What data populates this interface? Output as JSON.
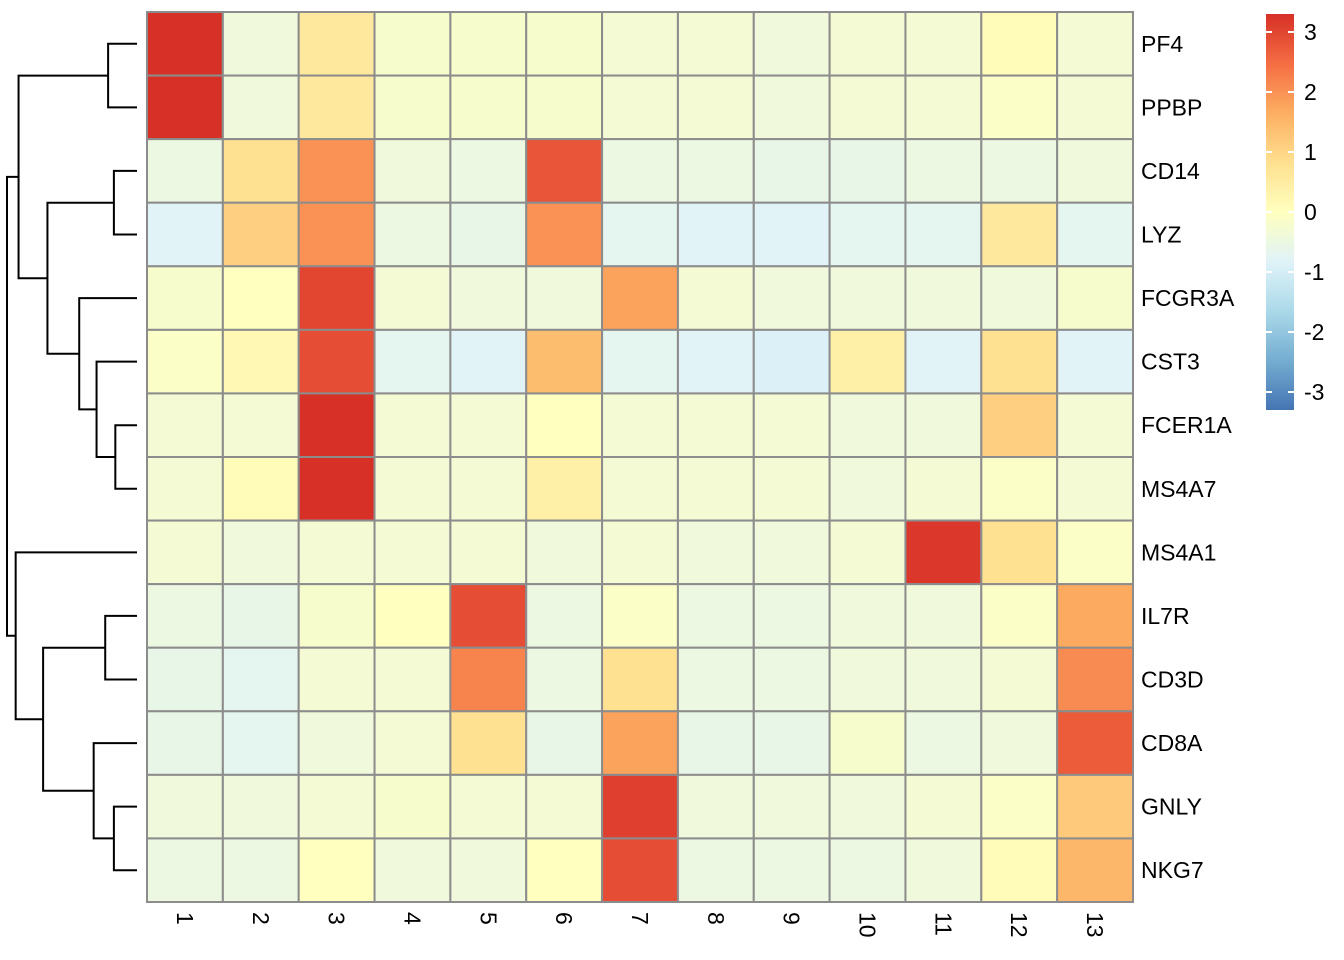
{
  "chart_data": {
    "type": "heatmap",
    "title": "",
    "xlabel": "",
    "ylabel": "",
    "columns": [
      "1",
      "2",
      "3",
      "4",
      "5",
      "6",
      "7",
      "8",
      "9",
      "10",
      "11",
      "12",
      "13"
    ],
    "rows": [
      "PF4",
      "PPBP",
      "CD14",
      "LYZ",
      "FCGR3A",
      "CST3",
      "FCER1A",
      "MS4A7",
      "MS4A1",
      "IL7R",
      "CD3D",
      "CD8A",
      "GNLY",
      "NKG7"
    ],
    "values": [
      [
        3.3,
        -0.4,
        0.6,
        -0.2,
        -0.2,
        -0.2,
        -0.3,
        -0.3,
        -0.4,
        -0.3,
        -0.3,
        0.1,
        -0.3
      ],
      [
        3.3,
        -0.4,
        0.6,
        -0.2,
        -0.2,
        -0.2,
        -0.3,
        -0.3,
        -0.4,
        -0.3,
        -0.3,
        -0.1,
        -0.3
      ],
      [
        -0.5,
        0.8,
        2.0,
        -0.4,
        -0.5,
        2.8,
        -0.5,
        -0.5,
        -0.6,
        -0.6,
        -0.5,
        -0.5,
        -0.4
      ],
      [
        -0.8,
        1.1,
        2.0,
        -0.5,
        -0.6,
        2.0,
        -0.7,
        -0.8,
        -0.8,
        -0.7,
        -0.7,
        0.6,
        -0.7
      ],
      [
        -0.2,
        0.0,
        3.0,
        -0.3,
        -0.4,
        -0.4,
        1.8,
        -0.3,
        -0.4,
        -0.4,
        -0.4,
        -0.4,
        -0.2
      ],
      [
        -0.1,
        0.2,
        2.9,
        -0.7,
        -0.8,
        1.4,
        -0.7,
        -0.8,
        -0.9,
        0.4,
        -0.8,
        0.8,
        -0.8
      ],
      [
        -0.3,
        -0.3,
        3.3,
        -0.3,
        -0.3,
        0.0,
        -0.3,
        -0.3,
        -0.3,
        -0.4,
        -0.4,
        1.1,
        -0.3
      ],
      [
        -0.3,
        0.1,
        3.3,
        -0.3,
        -0.3,
        0.4,
        -0.3,
        -0.3,
        -0.3,
        -0.4,
        -0.3,
        -0.1,
        -0.3
      ],
      [
        -0.3,
        -0.4,
        -0.3,
        -0.3,
        -0.3,
        -0.4,
        -0.3,
        -0.4,
        -0.4,
        -0.3,
        3.2,
        0.8,
        -0.1
      ],
      [
        -0.5,
        -0.6,
        -0.2,
        0.0,
        2.9,
        -0.5,
        -0.1,
        -0.5,
        -0.5,
        -0.4,
        -0.4,
        -0.1,
        1.7
      ],
      [
        -0.6,
        -0.7,
        -0.3,
        -0.3,
        2.2,
        -0.5,
        0.8,
        -0.5,
        -0.5,
        -0.4,
        -0.4,
        -0.3,
        2.1
      ],
      [
        -0.6,
        -0.7,
        -0.4,
        -0.3,
        0.8,
        -0.6,
        1.8,
        -0.6,
        -0.6,
        -0.2,
        -0.5,
        -0.4,
        2.7
      ],
      [
        -0.4,
        -0.4,
        -0.3,
        -0.2,
        -0.3,
        -0.3,
        3.1,
        -0.4,
        -0.4,
        -0.4,
        -0.3,
        -0.1,
        1.2
      ],
      [
        -0.5,
        -0.5,
        0.0,
        -0.4,
        -0.4,
        0.0,
        2.9,
        -0.5,
        -0.5,
        -0.5,
        -0.4,
        0.1,
        1.5
      ]
    ],
    "color_scale": {
      "min": -3.3,
      "max": 3.3,
      "stops": [
        "#4575B4",
        "#74ADD1",
        "#ABD9E9",
        "#E0F3F8",
        "#FFFFBF",
        "#FEE090",
        "#FDAE61",
        "#F46D43",
        "#D73027"
      ]
    },
    "legend": {
      "position": "right",
      "ticks": [
        3,
        2,
        1,
        0,
        -1,
        -2,
        -3
      ],
      "tick_labels": [
        "3",
        "2",
        "1",
        "0",
        "-1",
        "-2",
        "-3"
      ]
    },
    "row_dendrogram": {
      "merges": [
        [
          0,
          1,
          0.2
        ],
        [
          2,
          3,
          0.16
        ],
        [
          6,
          7,
          0.15
        ],
        [
          5,
          "m2",
          0.28
        ],
        [
          4,
          "m3",
          0.4
        ],
        [
          "m1",
          "m4",
          0.62
        ],
        [
          "m0",
          "m5",
          0.82
        ],
        [
          12,
          13,
          0.16
        ],
        [
          9,
          10,
          0.22
        ],
        [
          11,
          "m7",
          0.3
        ],
        [
          "m8",
          "m9",
          0.65
        ],
        [
          8,
          "m10",
          0.84
        ],
        [
          "m6",
          "m11",
          0.9
        ]
      ]
    },
    "grid": true
  }
}
